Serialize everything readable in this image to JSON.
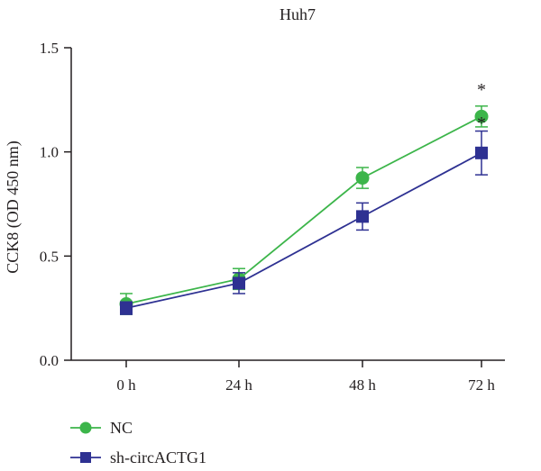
{
  "chart_data": {
    "type": "line",
    "title": "Huh7",
    "xlabel": "",
    "ylabel": "CCK8 (OD 450 nm)",
    "categories": [
      "0 h",
      "24 h",
      "48 h",
      "72 h"
    ],
    "ylim": [
      0,
      1.5
    ],
    "yticks": [
      "0.0",
      "0.5",
      "1.0",
      "1.5"
    ],
    "legend_position": "bottom-left",
    "grid": false,
    "series": [
      {
        "name": "NC",
        "marker": "circle",
        "color": "#3cb54a",
        "values": [
          0.27,
          0.39,
          0.875,
          1.17
        ],
        "errors": [
          0.05,
          0.05,
          0.05,
          0.05
        ]
      },
      {
        "name": "sh-circACTG1",
        "marker": "square",
        "color": "#2e3192",
        "values": [
          0.25,
          0.37,
          0.69,
          0.995
        ],
        "errors": [
          0.03,
          0.05,
          0.065,
          0.105
        ]
      }
    ],
    "annotations": [
      {
        "category": "72 h",
        "text": "*"
      },
      {
        "category": "72 h",
        "text": "*"
      }
    ]
  }
}
